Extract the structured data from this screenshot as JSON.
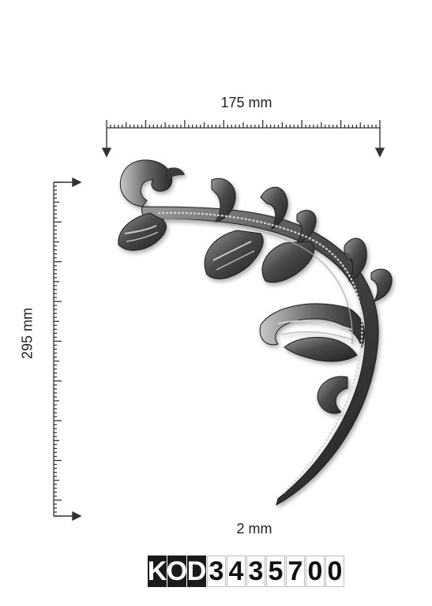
{
  "dimensions": {
    "width_label": "175 mm",
    "height_label": "295 mm",
    "thickness_label": "2 mm"
  },
  "product_code": {
    "prefix": [
      "K",
      "O",
      "D"
    ],
    "digits": [
      "3",
      "4",
      "3",
      "5",
      "7",
      "0",
      "0"
    ]
  },
  "colors": {
    "metal_dark": "#2b2b2b",
    "metal_mid": "#6e6e6e",
    "metal_light": "#b5b5b5",
    "code_prefix_bg": "#1a1a1a"
  }
}
